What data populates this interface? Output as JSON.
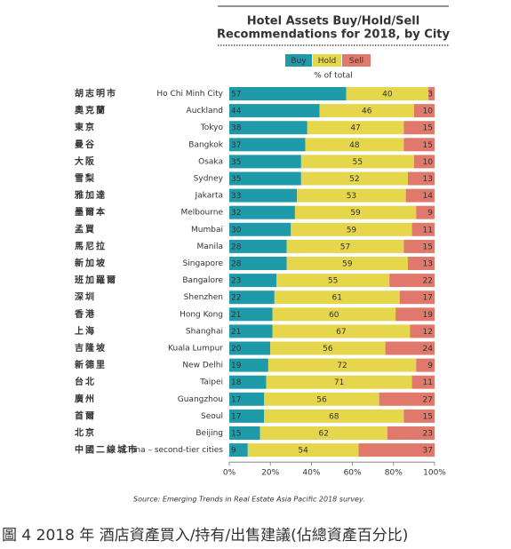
{
  "chart_data": {
    "type": "stacked-bar-horizontal",
    "title": [
      "Hotel Assets Buy/Hold/Sell",
      "Recommendations for 2018, by City"
    ],
    "subtitle": "% of total",
    "categories": [
      "Ho Chi Minh City",
      "Auckland",
      "Tokyo",
      "Bangkok",
      "Osaka",
      "Sydney",
      "Jakarta",
      "Melbourne",
      "Mumbai",
      "Manila",
      "Singapore",
      "Bangalore",
      "Shenzhen",
      "Hong Kong",
      "Shanghai",
      "Kuala Lumpur",
      "New Delhi",
      "Taipei",
      "Guangzhou",
      "Seoul",
      "Beijing",
      "China – second-tier cities"
    ],
    "categories_zh": [
      "胡志明市",
      "奧克蘭",
      "東京",
      "曼谷",
      "大阪",
      "雪梨",
      "雅加達",
      "墨爾本",
      "孟買",
      "馬尼拉",
      "新加坡",
      "班加羅爾",
      "深圳",
      "香港",
      "上海",
      "吉隆坡",
      "新德里",
      "台北",
      "廣州",
      "首爾",
      "北京",
      "中國二線城市"
    ],
    "series": [
      {
        "name": "Buy",
        "color": "#1f9aa9",
        "values": [
          57,
          44,
          38,
          37,
          35,
          35,
          33,
          32,
          30,
          28,
          28,
          23,
          22,
          21,
          21,
          20,
          19,
          18,
          17,
          17,
          15,
          9
        ]
      },
      {
        "name": "Hold",
        "color": "#e6d64c",
        "values": [
          40,
          46,
          47,
          48,
          55,
          52,
          53,
          59,
          59,
          57,
          59,
          55,
          61,
          60,
          67,
          56,
          72,
          71,
          56,
          68,
          62,
          54
        ]
      },
      {
        "name": "Sell",
        "color": "#e0796c",
        "values": [
          3,
          10,
          15,
          15,
          10,
          13,
          14,
          9,
          11,
          15,
          13,
          22,
          17,
          19,
          12,
          24,
          9,
          11,
          27,
          15,
          23,
          37
        ]
      }
    ],
    "xlim": [
      0,
      100
    ],
    "xticks": [
      {
        "value": 0,
        "label": "0%"
      },
      {
        "value": 20,
        "label": "20%"
      },
      {
        "value": 40,
        "label": "40%"
      },
      {
        "value": 60,
        "label": "60%"
      },
      {
        "value": 80,
        "label": "80%"
      },
      {
        "value": 100,
        "label": "100%"
      }
    ],
    "source": "Source: Emerging Trends in Real Estate Asia Pacific 2018 survey.",
    "caption": "圖 4 2018 年  酒店資產買入/持有/出售建議(佔總資產百分比)"
  }
}
